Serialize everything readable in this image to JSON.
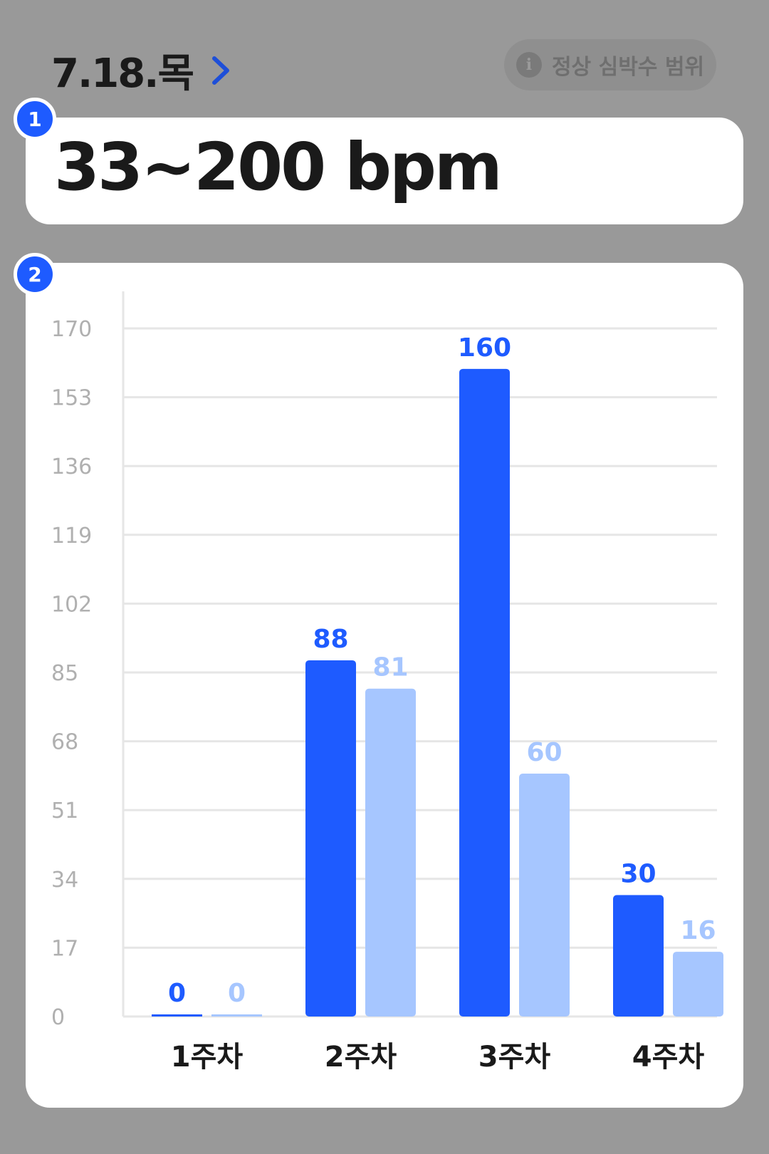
{
  "header": {
    "date_title": "7.18.목",
    "range_button_label": "정상 심박수 범위",
    "info_icon": "i"
  },
  "bpm_card": {
    "badge": "1",
    "value": "33~200 bpm"
  },
  "chart_card": {
    "badge": "2"
  },
  "colors": {
    "primary": "#1E5BFF",
    "secondary": "#A6C6FF",
    "grid": "#E6E6E6",
    "tick_text": "#B0B0B0"
  },
  "chart_data": {
    "type": "bar",
    "categories": [
      "1주차",
      "2주차",
      "3주차",
      "4주차"
    ],
    "series": [
      {
        "values": [
          0,
          88,
          160,
          30
        ]
      },
      {
        "values": [
          0,
          81,
          60,
          16
        ]
      }
    ],
    "yticks": [
      0,
      17,
      34,
      51,
      68,
      85,
      102,
      119,
      136,
      153,
      170
    ],
    "ylim": [
      0,
      170
    ],
    "grid": true,
    "legend": "none",
    "data_labels": true
  }
}
